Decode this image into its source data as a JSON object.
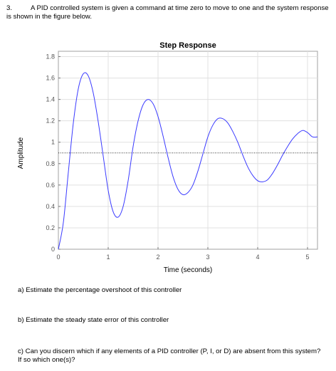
{
  "question": {
    "number": "3.",
    "text": "A PID controlled system is given a command at time zero to move to one and the system response is shown in the figure below.",
    "part_a": "a)  Estimate the percentage overshoot of this controller",
    "part_b": "b)  Estimate the steady state error of this controller",
    "part_c": "c)  Can you discern which if any elements of a PID controller (P, I, or D) are absent from this system?  If so which one(s)?"
  },
  "chart_data": {
    "type": "line",
    "title": "Step Response",
    "xlabel": "Time (seconds)",
    "ylabel": "Amplitude",
    "xlim": [
      0,
      5.2
    ],
    "ylim": [
      0,
      1.85
    ],
    "xticks": [
      0,
      1,
      2,
      3,
      4,
      5
    ],
    "yticks": [
      0,
      0.2,
      0.4,
      0.6,
      0.8,
      1,
      1.2,
      1.4,
      1.6,
      1.8
    ],
    "grid": true,
    "series": [
      {
        "color": "#3b3bff",
        "x": [
          0,
          0.1,
          0.2,
          0.3,
          0.4,
          0.5,
          0.6,
          0.7,
          0.8,
          0.9,
          1.0,
          1.1,
          1.2,
          1.3,
          1.4,
          1.5,
          1.6,
          1.7,
          1.8,
          1.9,
          2.0,
          2.1,
          2.2,
          2.3,
          2.4,
          2.5,
          2.6,
          2.7,
          2.8,
          2.9,
          3.0,
          3.1,
          3.2,
          3.3,
          3.4,
          3.5,
          3.6,
          3.7,
          3.8,
          3.9,
          4.0,
          4.1,
          4.2,
          4.3,
          4.4,
          4.5,
          4.6,
          4.7,
          4.8,
          4.9,
          5.0,
          5.1,
          5.2
        ],
        "y": [
          0,
          0.25,
          0.72,
          1.18,
          1.5,
          1.64,
          1.62,
          1.46,
          1.19,
          0.87,
          0.55,
          0.35,
          0.3,
          0.4,
          0.64,
          0.96,
          1.2,
          1.35,
          1.4,
          1.36,
          1.24,
          1.06,
          0.86,
          0.68,
          0.56,
          0.51,
          0.53,
          0.6,
          0.73,
          0.89,
          1.05,
          1.16,
          1.22,
          1.22,
          1.18,
          1.1,
          1.0,
          0.88,
          0.77,
          0.69,
          0.64,
          0.63,
          0.65,
          0.71,
          0.79,
          0.88,
          0.96,
          1.03,
          1.08,
          1.11,
          1.09,
          1.05,
          1.05
        ]
      }
    ],
    "reference_line": {
      "y": 0.9,
      "style": "dotted",
      "color": "#333333"
    }
  }
}
